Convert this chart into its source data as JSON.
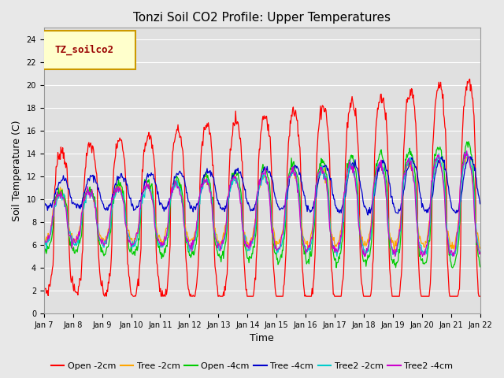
{
  "title": "Tonzi Soil CO2 Profile: Upper Temperatures",
  "ylabel": "Soil Temperature (C)",
  "xlabel": "Time",
  "legend_label": "TZ_soilco2",
  "ylim": [
    0,
    25
  ],
  "series_names": [
    "Open -2cm",
    "Tree -2cm",
    "Open -4cm",
    "Tree -4cm",
    "Tree2 -2cm",
    "Tree2 -4cm"
  ],
  "series_colors": [
    "#ff0000",
    "#ffa500",
    "#00cc00",
    "#0000cc",
    "#00cccc",
    "#cc00cc"
  ],
  "x_tick_labels": [
    "Jan 7",
    "Jan 8",
    "Jan 9",
    "Jan 10",
    "Jan 11",
    "Jan 12",
    "Jan 13",
    "Jan 14",
    "Jan 15",
    "Jan 16",
    "Jan 17",
    "Jan 18",
    "Jan 19",
    "Jan 20",
    "Jan 21",
    "Jan 22"
  ],
  "background_color": "#e8e8e8",
  "plot_bg_color": "#e0e0e0",
  "grid_color": "#ffffff",
  "legend_box_facecolor": "#ffffcc",
  "legend_box_edgecolor": "#cc9900",
  "legend_text_color": "#990000",
  "title_fontsize": 11,
  "axis_fontsize": 9,
  "tick_fontsize": 7,
  "legend_fontsize": 8
}
